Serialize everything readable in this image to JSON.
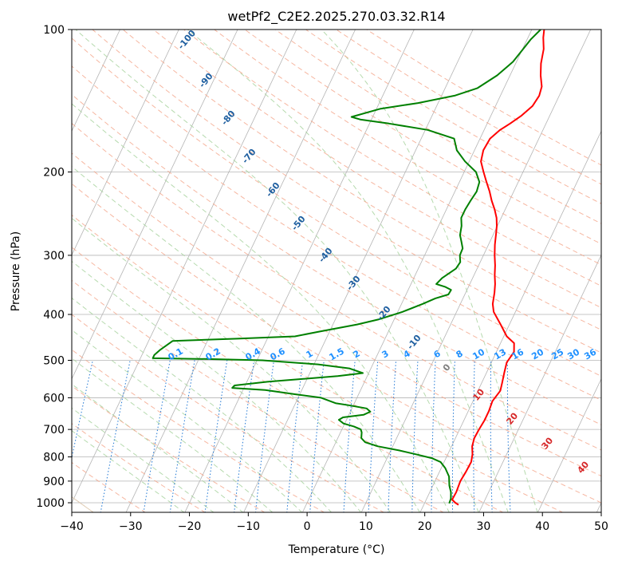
{
  "chart_data": {
    "type": "line",
    "title": "wetPf2_C2E2.2025.270.03.32.R14",
    "xlabel": "Temperature (°C)",
    "ylabel": "Pressure (hPa)",
    "xlim": [
      -40,
      50
    ],
    "ylim": [
      1050,
      100
    ],
    "y_scale": "log",
    "grid": true,
    "x_ticks": [
      -40,
      -30,
      -20,
      -10,
      0,
      10,
      20,
      30,
      40,
      50
    ],
    "y_ticks": [
      1000,
      900,
      800,
      700,
      600,
      500,
      400,
      300,
      200,
      100
    ],
    "series": [
      {
        "role": "temperature",
        "color": "#ff0000",
        "points": [
          [
            25.9,
            1010
          ],
          [
            25.2,
            1000
          ],
          [
            24.4,
            985
          ],
          [
            24.5,
            950
          ],
          [
            24.3,
            900
          ],
          [
            24.5,
            860
          ],
          [
            24.6,
            820
          ],
          [
            24.2,
            790
          ],
          [
            23.5,
            760
          ],
          [
            23.2,
            730
          ],
          [
            23.3,
            700
          ],
          [
            23.5,
            670
          ],
          [
            23.5,
            640
          ],
          [
            23.3,
            610
          ],
          [
            23.8,
            580
          ],
          [
            23.5,
            560
          ],
          [
            23.0,
            530
          ],
          [
            22.6,
            505
          ],
          [
            23.0,
            480
          ],
          [
            22.3,
            460
          ],
          [
            20.5,
            445
          ],
          [
            18.5,
            420
          ],
          [
            16.3,
            395
          ],
          [
            15.5,
            380
          ],
          [
            14.9,
            360
          ],
          [
            14.3,
            345
          ],
          [
            13.5,
            330
          ],
          [
            12.8,
            315
          ],
          [
            11.9,
            300
          ],
          [
            11.1,
            285
          ],
          [
            10.4,
            270
          ],
          [
            9.9,
            260
          ],
          [
            9.2,
            250
          ],
          [
            8.2,
            240
          ],
          [
            7.0,
            230
          ],
          [
            5.9,
            220
          ],
          [
            4.6,
            210
          ],
          [
            3.3,
            200
          ],
          [
            2.0,
            190
          ],
          [
            1.5,
            180
          ],
          [
            1.7,
            170
          ],
          [
            2.7,
            163
          ],
          [
            3.9,
            158
          ],
          [
            5.2,
            152
          ],
          [
            6.3,
            145
          ],
          [
            6.6,
            138
          ],
          [
            6.3,
            132
          ],
          [
            5.2,
            125
          ],
          [
            4.3,
            118
          ],
          [
            3.6,
            110
          ],
          [
            2.6,
            104
          ],
          [
            2.1,
            100
          ]
        ]
      },
      {
        "role": "dewpoint",
        "color": "#008000",
        "points": [
          [
            24.2,
            1003
          ],
          [
            24.1,
            980
          ],
          [
            23.6,
            950
          ],
          [
            22.8,
            920
          ],
          [
            22.0,
            880
          ],
          [
            20.7,
            845
          ],
          [
            19.4,
            820
          ],
          [
            17.6,
            805
          ],
          [
            14.6,
            790
          ],
          [
            11.4,
            775
          ],
          [
            7.5,
            760
          ],
          [
            5.0,
            745
          ],
          [
            4.0,
            730
          ],
          [
            3.6,
            710
          ],
          [
            3.2,
            700
          ],
          [
            1.8,
            690
          ],
          [
            -0.2,
            680
          ],
          [
            -1.3,
            668
          ],
          [
            -0.8,
            660
          ],
          [
            2.5,
            652
          ],
          [
            3.4,
            642
          ],
          [
            2.5,
            632
          ],
          [
            -0.9,
            622
          ],
          [
            -3.2,
            616
          ],
          [
            -6.1,
            600
          ],
          [
            -10.7,
            590
          ],
          [
            -16.2,
            578
          ],
          [
            -22.0,
            572
          ],
          [
            -21.8,
            565
          ],
          [
            -16.5,
            555
          ],
          [
            -5.0,
            540
          ],
          [
            -1.0,
            532
          ],
          [
            -3.7,
            520
          ],
          [
            -9.3,
            510
          ],
          [
            -19.1,
            500
          ],
          [
            -28.5,
            497
          ],
          [
            -37.9,
            495
          ],
          [
            -37.9,
            487
          ],
          [
            -37.3,
            475
          ],
          [
            -35.9,
            455
          ],
          [
            -25.1,
            450
          ],
          [
            -15.5,
            445
          ],
          [
            -11.8,
            435
          ],
          [
            -5.9,
            420
          ],
          [
            -2.7,
            410
          ],
          [
            0.8,
            395
          ],
          [
            3.6,
            380
          ],
          [
            5.3,
            370
          ],
          [
            7.2,
            363
          ],
          [
            7.3,
            355
          ],
          [
            6.1,
            350
          ],
          [
            4.3,
            345
          ],
          [
            4.8,
            335
          ],
          [
            6.4,
            320
          ],
          [
            6.6,
            310
          ],
          [
            6.0,
            300
          ],
          [
            5.9,
            290
          ],
          [
            5.1,
            280
          ],
          [
            4.4,
            272
          ],
          [
            3.9,
            260
          ],
          [
            3.2,
            250
          ],
          [
            3.2,
            240
          ],
          [
            3.4,
            230
          ],
          [
            3.7,
            220
          ],
          [
            3.4,
            210
          ],
          [
            2.0,
            200
          ],
          [
            -0.7,
            190
          ],
          [
            -3.0,
            180
          ],
          [
            -4.4,
            170
          ],
          [
            -9.6,
            163
          ],
          [
            -16.7,
            158
          ],
          [
            -21.8,
            155
          ],
          [
            -23.6,
            153
          ],
          [
            -19.3,
            147
          ],
          [
            -13.4,
            143
          ],
          [
            -7.8,
            138
          ],
          [
            -4.5,
            133
          ],
          [
            -2.2,
            125
          ],
          [
            -0.6,
            117
          ],
          [
            0.1,
            110
          ],
          [
            0.6,
            105
          ],
          [
            1.5,
            100
          ]
        ]
      }
    ],
    "annotations": {
      "dry_adiabat_labels": [
        "-100",
        "-90",
        "-80",
        "-70",
        "-60",
        "-50",
        "-40",
        "-30",
        "-20",
        "-10",
        "0",
        "10",
        "20",
        "30",
        "40"
      ],
      "mixing_ratio_labels": [
        "0.1",
        "0.2",
        "0.4",
        "0.6",
        "1",
        "1.5",
        "2",
        "3",
        "4",
        "6",
        "8",
        "10",
        "13",
        "16",
        "20",
        "25",
        "30",
        "36"
      ]
    },
    "colors": {
      "isotherm": "#b4b4b4",
      "isobar": "#b4b4b4",
      "dry_adiabat": "#f4a58a",
      "moist_adiabat": "#a9d3a0",
      "mixing_ratio": "#1f77d4",
      "theta_e": "#d8bfa0",
      "adiabat_label": "#1f5fa0",
      "adiabat_label_hot": "#d62728",
      "mixing_label": "#1e90ff"
    }
  }
}
